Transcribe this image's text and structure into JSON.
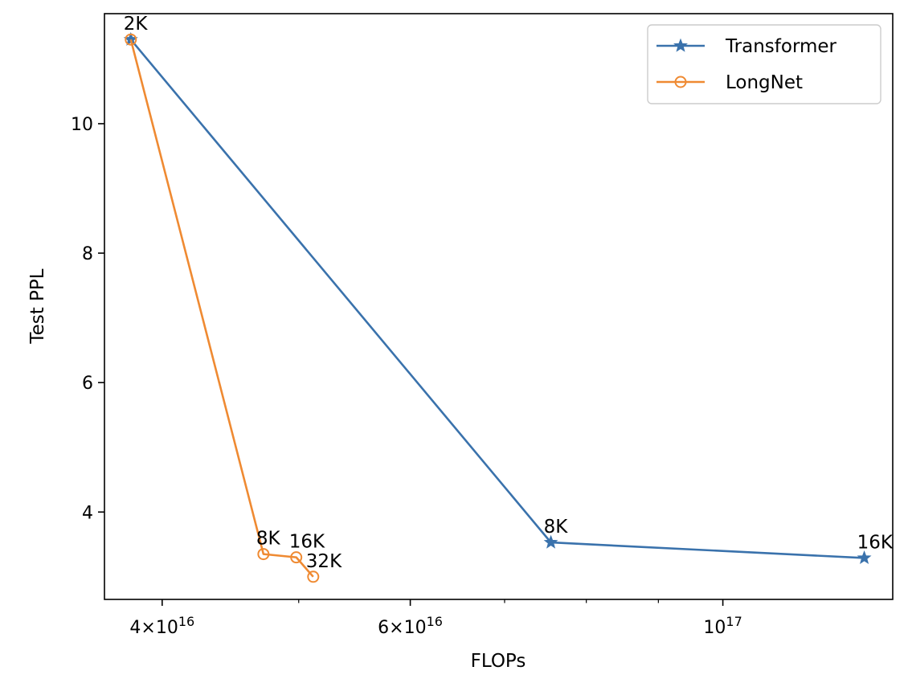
{
  "chart_data": {
    "type": "line",
    "xscale": "log",
    "xlabel": "FLOPs",
    "ylabel": "Test PPL",
    "xlim": [
      3.64e+16,
      1.32e+17
    ],
    "ylim": [
      2.65,
      11.7
    ],
    "grid": false,
    "legend_position": "top-right",
    "x_ticks": [
      {
        "value": 4e+16,
        "mantissa": "4",
        "times": "×",
        "base": "10",
        "exp": "16"
      },
      {
        "value": 6e+16,
        "mantissa": "6",
        "times": "×",
        "base": "10",
        "exp": "16"
      },
      {
        "value": 1e+17,
        "mantissa": "",
        "times": "",
        "base": "10",
        "exp": "17"
      }
    ],
    "x_minor_ticks": [
      5e+16,
      7e+16,
      8e+16,
      9e+16
    ],
    "y_ticks": [
      {
        "value": 4,
        "label": "4"
      },
      {
        "value": 6,
        "label": "6"
      },
      {
        "value": 8,
        "label": "8"
      },
      {
        "value": 10,
        "label": "10"
      }
    ],
    "series": [
      {
        "name": "Transformer",
        "color": "#3a72ac",
        "marker": "star",
        "points": [
          {
            "x": 3.8e+16,
            "y": 11.3,
            "label": "2K"
          },
          {
            "x": 7.55e+16,
            "y": 3.53,
            "label": "8K"
          },
          {
            "x": 1.26e+17,
            "y": 3.29,
            "label": "16K"
          }
        ]
      },
      {
        "name": "LongNet",
        "color": "#ef8a32",
        "marker": "circle",
        "points": [
          {
            "x": 3.8e+16,
            "y": 11.3,
            "label": ""
          },
          {
            "x": 4.72e+16,
            "y": 3.35,
            "label": "8K"
          },
          {
            "x": 4.98e+16,
            "y": 3.3,
            "label": "16K"
          },
          {
            "x": 5.12e+16,
            "y": 3.0,
            "label": "32K"
          }
        ]
      }
    ]
  }
}
